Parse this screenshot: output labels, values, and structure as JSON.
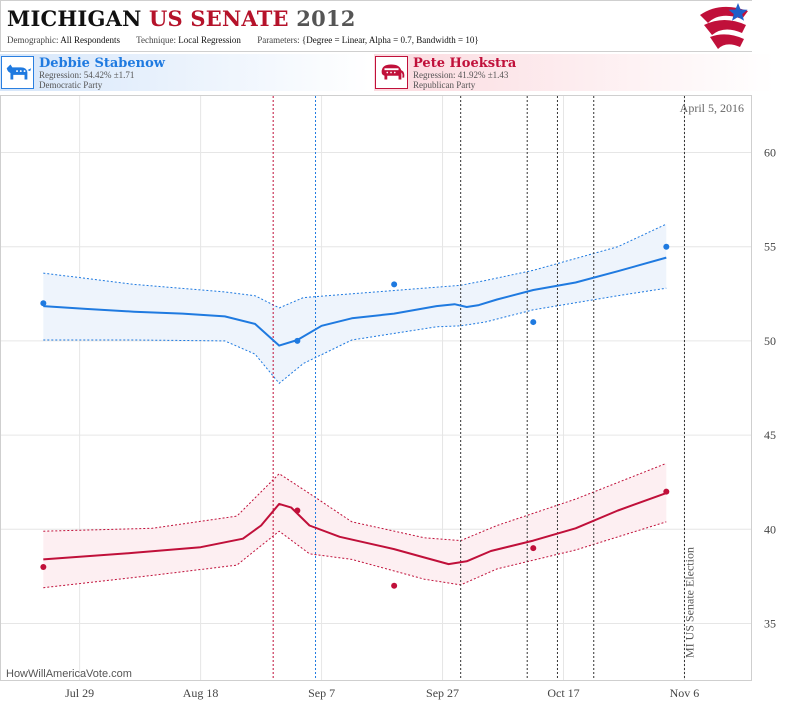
{
  "header": {
    "title_state": "MICHIGAN",
    "title_office": "US SENATE",
    "title_year": "2012",
    "demographic_label": "Demographic:",
    "demographic_value": "All Respondents",
    "technique_label": "Technique:",
    "technique_value": "Local Regression",
    "parameters_label": "Parameters:",
    "parameters_value": "{Degree = Linear, Alpha = 0.7, Bandwidth = 10}"
  },
  "candidates": [
    {
      "name": "Debbie Stabenow",
      "regression": "Regression: 54.42% ±1.71",
      "party": "Democratic Party",
      "icon": "donkey-icon",
      "color": "#1f7ae0"
    },
    {
      "name": "Pete Hoekstra",
      "regression": "Regression: 41.92% ±1.43",
      "party": "Republican Party",
      "icon": "elephant-icon",
      "color": "#c0103a"
    }
  ],
  "date_stamp": "April 5, 2016",
  "watermark": "HowWillAmericaVote.com",
  "chart_data": {
    "type": "line",
    "x_axis": {
      "min": "2012-07-16",
      "max": "2012-11-17",
      "ticks": [
        {
          "date": "2012-07-29",
          "label": "Jul 29"
        },
        {
          "date": "2012-08-18",
          "label": "Aug 18"
        },
        {
          "date": "2012-09-07",
          "label": "Sep 7"
        },
        {
          "date": "2012-09-27",
          "label": "Sep 27"
        },
        {
          "date": "2012-10-17",
          "label": "Oct 17"
        },
        {
          "date": "2012-11-06",
          "label": "Nov 6"
        }
      ]
    },
    "y_axis": {
      "min": 32,
      "max": 63,
      "ticks": [
        35,
        40,
        45,
        50,
        55,
        60
      ],
      "side": "right"
    },
    "grid": true,
    "event_lines": [
      {
        "date": "2012-08-30",
        "color": "#c0103a"
      },
      {
        "date": "2012-09-06",
        "color": "#1f7ae0"
      },
      {
        "date": "2012-09-30"
      },
      {
        "date": "2012-10-11"
      },
      {
        "date": "2012-10-16"
      },
      {
        "date": "2012-10-22"
      },
      {
        "date": "2012-11-06",
        "label": "MI US Senate Election"
      }
    ],
    "series": [
      {
        "name": "Debbie Stabenow",
        "color": "#1f7ae0",
        "band_fill": "#eef4fc",
        "points": [
          [
            "2012-07-23",
            52
          ],
          [
            "2012-09-03",
            50
          ],
          [
            "2012-09-19",
            53
          ],
          [
            "2012-10-12",
            51
          ],
          [
            "2012-11-03",
            55
          ]
        ],
        "trend": [
          [
            "2012-07-23",
            51.85
          ],
          [
            "2012-07-30",
            51.7
          ],
          [
            "2012-08-07",
            51.55
          ],
          [
            "2012-08-15",
            51.45
          ],
          [
            "2012-08-22",
            51.3
          ],
          [
            "2012-08-27",
            50.9
          ],
          [
            "2012-08-31",
            49.75
          ],
          [
            "2012-09-03",
            50.05
          ],
          [
            "2012-09-07",
            50.8
          ],
          [
            "2012-09-12",
            51.2
          ],
          [
            "2012-09-19",
            51.45
          ],
          [
            "2012-09-26",
            51.85
          ],
          [
            "2012-09-29",
            51.95
          ],
          [
            "2012-10-01",
            51.8
          ],
          [
            "2012-10-03",
            51.9
          ],
          [
            "2012-10-06",
            52.2
          ],
          [
            "2012-10-12",
            52.7
          ],
          [
            "2012-10-19",
            53.1
          ],
          [
            "2012-10-26",
            53.7
          ],
          [
            "2012-11-03",
            54.42
          ]
        ],
        "upper": [
          [
            "2012-07-23",
            53.6
          ],
          [
            "2012-08-07",
            53.0
          ],
          [
            "2012-08-22",
            52.6
          ],
          [
            "2012-08-27",
            52.4
          ],
          [
            "2012-08-31",
            51.75
          ],
          [
            "2012-09-04",
            52.3
          ],
          [
            "2012-09-12",
            52.5
          ],
          [
            "2012-09-26",
            52.85
          ],
          [
            "2012-09-30",
            52.95
          ],
          [
            "2012-10-04",
            53.2
          ],
          [
            "2012-10-12",
            53.75
          ],
          [
            "2012-10-26",
            55.0
          ],
          [
            "2012-11-03",
            56.2
          ]
        ],
        "lower": [
          [
            "2012-07-23",
            50.05
          ],
          [
            "2012-08-07",
            50.05
          ],
          [
            "2012-08-22",
            50.0
          ],
          [
            "2012-08-27",
            49.3
          ],
          [
            "2012-08-31",
            47.75
          ],
          [
            "2012-09-04",
            48.8
          ],
          [
            "2012-09-12",
            50.05
          ],
          [
            "2012-09-26",
            50.75
          ],
          [
            "2012-09-30",
            50.8
          ],
          [
            "2012-10-04",
            51.0
          ],
          [
            "2012-10-12",
            51.65
          ],
          [
            "2012-10-26",
            52.4
          ],
          [
            "2012-11-03",
            52.8
          ]
        ]
      },
      {
        "name": "Pete Hoekstra",
        "color": "#c0103a",
        "band_fill": "#fdeff2",
        "points": [
          [
            "2012-07-23",
            38
          ],
          [
            "2012-09-03",
            41
          ],
          [
            "2012-09-19",
            37
          ],
          [
            "2012-10-12",
            39
          ],
          [
            "2012-11-03",
            42
          ]
        ],
        "trend": [
          [
            "2012-07-23",
            38.4
          ],
          [
            "2012-08-07",
            38.75
          ],
          [
            "2012-08-18",
            39.05
          ],
          [
            "2012-08-25",
            39.5
          ],
          [
            "2012-08-28",
            40.2
          ],
          [
            "2012-08-31",
            41.35
          ],
          [
            "2012-09-02",
            41.15
          ],
          [
            "2012-09-05",
            40.2
          ],
          [
            "2012-09-10",
            39.6
          ],
          [
            "2012-09-19",
            38.95
          ],
          [
            "2012-09-24",
            38.5
          ],
          [
            "2012-09-28",
            38.15
          ],
          [
            "2012-10-01",
            38.3
          ],
          [
            "2012-10-05",
            38.85
          ],
          [
            "2012-10-12",
            39.4
          ],
          [
            "2012-10-19",
            40.05
          ],
          [
            "2012-10-26",
            41.0
          ],
          [
            "2012-11-03",
            41.92
          ]
        ],
        "upper": [
          [
            "2012-07-23",
            39.9
          ],
          [
            "2012-08-10",
            40.05
          ],
          [
            "2012-08-24",
            40.7
          ],
          [
            "2012-08-31",
            42.95
          ],
          [
            "2012-09-05",
            41.9
          ],
          [
            "2012-09-12",
            40.4
          ],
          [
            "2012-09-24",
            39.55
          ],
          [
            "2012-09-30",
            39.4
          ],
          [
            "2012-10-06",
            40.2
          ],
          [
            "2012-10-19",
            41.6
          ],
          [
            "2012-11-03",
            43.5
          ]
        ],
        "lower": [
          [
            "2012-07-23",
            36.9
          ],
          [
            "2012-08-10",
            37.55
          ],
          [
            "2012-08-24",
            38.1
          ],
          [
            "2012-08-31",
            39.9
          ],
          [
            "2012-09-05",
            38.7
          ],
          [
            "2012-09-12",
            38.4
          ],
          [
            "2012-09-24",
            37.35
          ],
          [
            "2012-09-30",
            37.05
          ],
          [
            "2012-10-06",
            37.9
          ],
          [
            "2012-10-19",
            38.9
          ],
          [
            "2012-11-03",
            40.4
          ]
        ]
      }
    ]
  }
}
